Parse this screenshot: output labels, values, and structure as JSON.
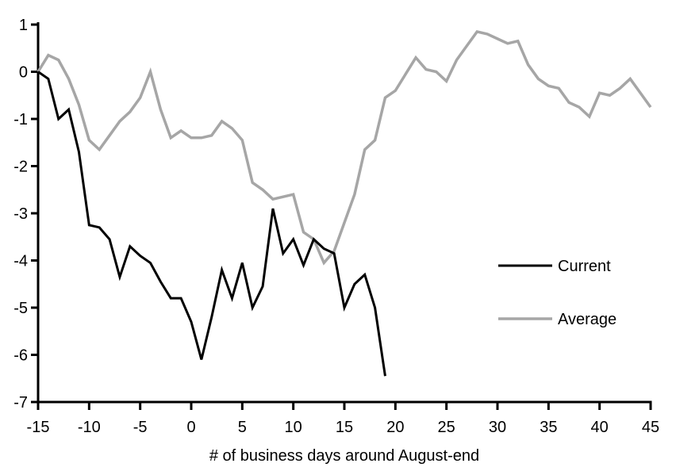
{
  "page": {
    "background": "#ffffff"
  },
  "chart_data": {
    "type": "line",
    "title": "",
    "xlabel": "# of business days around August-end",
    "ylabel": "",
    "xlim": [
      -15,
      45
    ],
    "ylim": [
      -7,
      1
    ],
    "x_ticks": [
      -15,
      -10,
      -5,
      0,
      5,
      10,
      15,
      20,
      25,
      30,
      35,
      40,
      45
    ],
    "y_ticks": [
      1,
      0,
      -1,
      -2,
      -3,
      -4,
      -5,
      -6,
      -7
    ],
    "grid": false,
    "legend_position": "middle-right",
    "series": [
      {
        "name": "Current",
        "color": "#000000",
        "stroke_width": 3,
        "x_start": -15,
        "x_step": 1,
        "x": [
          -15,
          -14,
          -13,
          -12,
          -11,
          -10,
          -9,
          -8,
          -7,
          -6,
          -5,
          -4,
          -3,
          -2,
          -1,
          0,
          1,
          2,
          3,
          4,
          5,
          6,
          7,
          8,
          9,
          10,
          11,
          12,
          13,
          14,
          15,
          16,
          17,
          18,
          19
        ],
        "values": [
          0,
          -0.15,
          -1.0,
          -0.8,
          -1.7,
          -3.25,
          -3.3,
          -3.55,
          -4.35,
          -3.7,
          -3.9,
          -4.05,
          -4.45,
          -4.8,
          -4.8,
          -5.3,
          -6.1,
          -5.2,
          -4.2,
          -4.8,
          -4.05,
          -5.0,
          -4.55,
          -2.9,
          -3.85,
          -3.55,
          -4.1,
          -3.55,
          -3.75,
          -3.85,
          -5.0,
          -4.5,
          -4.3,
          -5.0,
          -6.45
        ]
      },
      {
        "name": "Average",
        "color": "#a6a6a6",
        "stroke_width": 3.5,
        "x_start": -15,
        "x_step": 1,
        "x": [
          -15,
          -14,
          -13,
          -12,
          -11,
          -10,
          -9,
          -8,
          -7,
          -6,
          -5,
          -4,
          -3,
          -2,
          -1,
          0,
          1,
          2,
          3,
          4,
          5,
          6,
          7,
          8,
          9,
          10,
          11,
          12,
          13,
          14,
          15,
          16,
          17,
          18,
          19,
          20,
          21,
          22,
          23,
          24,
          25,
          26,
          27,
          28,
          29,
          30,
          31,
          32,
          33,
          34,
          35,
          36,
          37,
          38,
          39,
          40,
          41,
          42,
          43,
          44,
          45
        ],
        "values": [
          0,
          0.35,
          0.25,
          -0.15,
          -0.7,
          -1.45,
          -1.65,
          -1.35,
          -1.05,
          -0.85,
          -0.55,
          0.0,
          -0.8,
          -1.4,
          -1.25,
          -1.4,
          -1.4,
          -1.35,
          -1.05,
          -1.2,
          -1.45,
          -2.35,
          -2.5,
          -2.7,
          -2.65,
          -2.6,
          -3.4,
          -3.55,
          -4.05,
          -3.8,
          -3.2,
          -2.6,
          -1.65,
          -1.45,
          -0.55,
          -0.4,
          -0.05,
          0.3,
          0.05,
          0.0,
          -0.2,
          0.25,
          0.55,
          0.85,
          0.8,
          0.7,
          0.6,
          0.65,
          0.15,
          -0.15,
          -0.3,
          -0.35,
          -0.65,
          -0.75,
          -0.95,
          -0.45,
          -0.5,
          -0.35,
          -0.15,
          -0.45,
          -0.75
        ]
      }
    ]
  }
}
